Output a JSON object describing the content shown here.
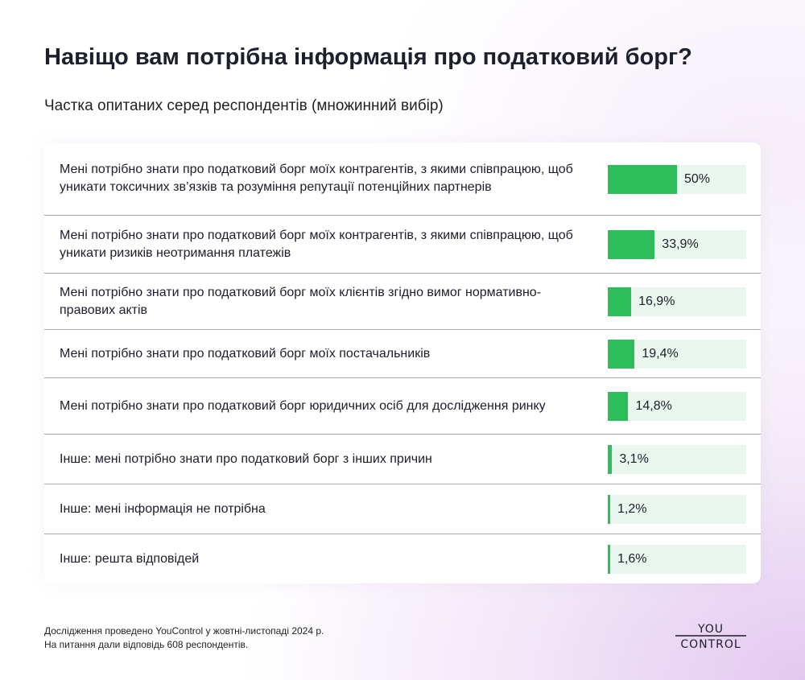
{
  "chart_data": {
    "type": "bar",
    "orientation": "horizontal",
    "title": "Навіщо вам потрібна інформація про податковий борг?",
    "subtitle": "Частка опитаних серед респондентів (множинний вибір)",
    "unit": "%",
    "xlim": [
      0,
      100
    ],
    "bar_color": "#2dbd5b",
    "track_color": "#e9f7ee",
    "categories": [
      "Мені потрібно знати про податковий борг моїх контрагентів, з якими співпрацюю, щоб уникати токсичних зв’язків та розуміння репутації потенційних партнерів",
      "Мені потрібно знати про податковий борг моїх контрагентів, з якими співпрацюю, щоб уникати ризиків неотримання платежів",
      "Мені потрібно знати про податковий борг моїх клієнтів згідно вимог нормативно-правових актів",
      "Мені потрібно знати про податковий борг моїх постачальників",
      "Мені потрібно знати про податковий борг юридичних осіб для дослідження ринку",
      "Інше: мені потрібно знати про податковий борг з інших причин",
      "Інше: мені інформація не потрібна",
      "Інше: решта відповідей"
    ],
    "values": [
      50,
      33.9,
      16.9,
      19.4,
      14.8,
      3.1,
      1.2,
      1.6
    ],
    "labels": [
      "50%",
      "33,9%",
      "16,9%",
      "19,4%",
      "14,8%",
      "3,1%",
      "1,2%",
      "1,6%"
    ]
  },
  "footer": {
    "line1": "Дослідження проведено YouControl у жовтні-листопаді 2024 р.",
    "line2": "На питання дали відповідь 608 респондентів."
  },
  "logo": {
    "top": "YOU",
    "bottom": "CONTROL"
  }
}
